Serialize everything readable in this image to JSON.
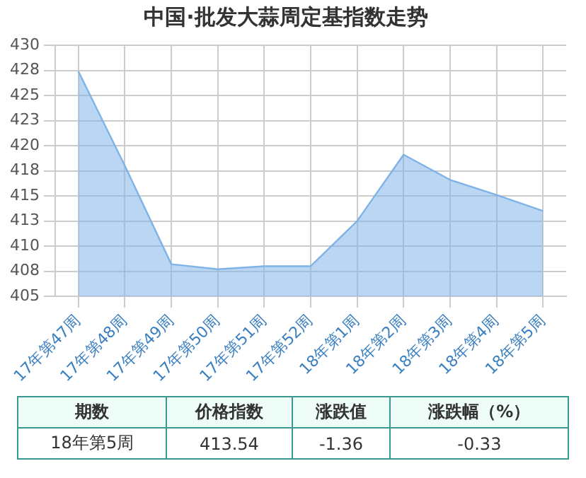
{
  "chart_data": {
    "type": "area",
    "title": "中国·批发大蒜周定基指数走势",
    "categories": [
      "17年第47周",
      "17年第48周",
      "17年第49周",
      "17年第50周",
      "17年第51周",
      "17年第52周",
      "18年第1周",
      "18年第2周",
      "18年第3周",
      "18年第4周",
      "18年第5周"
    ],
    "series": [
      {
        "color": "#7fb3e6",
        "values": [
          427.4,
          418,
          408.2,
          407.7,
          408,
          408,
          412.5,
          419.1,
          416.6,
          415.1,
          413.5
        ]
      }
    ],
    "ylim": [
      405,
      430
    ],
    "yticks": [
      405,
      {
        "value": 407.5,
        "label": "408"
      },
      410,
      {
        "value": 412.5,
        "label": "413"
      },
      415,
      {
        "value": 417.5,
        "label": "418"
      },
      420,
      {
        "value": 422.5,
        "label": "423"
      },
      425,
      {
        "value": 427.5,
        "label": "428"
      },
      430
    ],
    "grid": true,
    "legend": false,
    "marker": "none",
    "annotations": [
      "期数",
      "价格指数",
      "涨跌值",
      "涨跌幅（%）",
      "18年第5周",
      "413.54",
      "-1.36",
      "-0.33"
    ]
  }
}
